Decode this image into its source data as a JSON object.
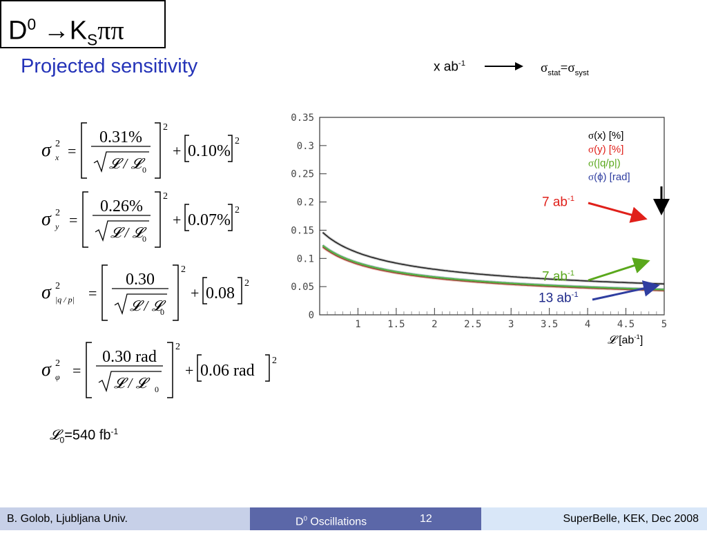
{
  "slide": {
    "title_main": "D",
    "title_sup": "0",
    "title_arrow": " →K",
    "title_sub": "S",
    "title_end": "ππ",
    "subtitle": "Projected sensitivity",
    "target_label": "x ab",
    "target_sup": "-1",
    "sigma_stat": "σ",
    "stat_sub": "stat",
    "equals": "=σ",
    "syst_sub": "syst"
  },
  "formulas": [
    {
      "sub": "x",
      "numerator": "0.31%",
      "syst": "0.10%"
    },
    {
      "sub": "y",
      "numerator": "0.26%",
      "syst": "0.07%"
    },
    {
      "sub": "|q / p|",
      "numerator": "0.30",
      "syst": "0.08"
    },
    {
      "sub": "φ",
      "numerator": "0.30 rad",
      "syst": "0.06 rad"
    }
  ],
  "formula_common": {
    "sigma": "σ",
    "power": "2",
    "eq": "=",
    "plus": "+",
    "denominator": "𝓛 / 𝓛",
    "denominator_sub": "0"
  },
  "luminosity_note": {
    "symbol": "𝓛",
    "sub": "0",
    "text": "=540 fb",
    "sup": "-1"
  },
  "chart_data": {
    "type": "line",
    "xlim": [
      0.5,
      5
    ],
    "ylim": [
      0,
      0.35
    ],
    "x_ticks": [
      1,
      1.5,
      2,
      2.5,
      3,
      3.5,
      4,
      4.5,
      5
    ],
    "y_ticks": [
      0,
      0.05,
      0.1,
      0.15,
      0.2,
      0.25,
      0.3,
      0.35
    ],
    "x_tick_labels": [
      "1",
      "1.5",
      "2",
      "2.5",
      "3",
      "3.5",
      "4",
      "4.5",
      "5"
    ],
    "y_tick_labels": [
      "0",
      "0.05",
      "0.1",
      "0.15",
      "0.2",
      "0.25",
      "0.3",
      "0.35"
    ],
    "xlabel_symbol": "𝓛",
    "xlabel_text": " [ab",
    "xlabel_sup": "-1",
    "xlabel_end": "]",
    "series": [
      {
        "name": "σ(x) [%]",
        "color": "#222222",
        "a": 0.1,
        "b": 0.01,
        "x": [
          0.54,
          5
        ]
      },
      {
        "name": "σ(y) [%]",
        "color": "#b23a2a",
        "a": 0.0845,
        "b": 0.0051,
        "x": [
          0.54,
          5
        ]
      },
      {
        "name": "σ(|q/p|)",
        "color": "#4fbf3a",
        "a": 0.0856,
        "b": 0.0064,
        "x": [
          0.54,
          5
        ]
      },
      {
        "name": "σ(φ) [rad]",
        "color": "#2d2f7e",
        "a": 0.0855,
        "b": 0.0067,
        "x": [
          0.54,
          5
        ]
      }
    ],
    "legend": [
      {
        "sym": "σ",
        "label": "(x) [%]",
        "color": "#000000"
      },
      {
        "sym": "σ",
        "label": "(y) [%]",
        "color": "#e0201a"
      },
      {
        "sym": "σ",
        "label": "(|q/p|)",
        "color": "#5aa81c"
      },
      {
        "sym": "σ",
        "label": "(ϕ) [rad]",
        "color": "#2f3ea0"
      }
    ],
    "annotations": [
      {
        "text": "7 ab",
        "sup": "-1",
        "color": "#e0201a"
      },
      {
        "text": "7 ab",
        "sup": "-1",
        "color": "#5aa81c"
      },
      {
        "text": "13 ab",
        "sup": "-1",
        "color": "#1f2a8a"
      }
    ],
    "legend_position": "top-right",
    "grid": false
  },
  "footer": {
    "left": "B. Golob, Ljubljana Univ.",
    "mid_d": "D",
    "mid_sup": "0",
    "mid_text": " Oscillations",
    "page": "12",
    "right": "SuperBelle, KEK, Dec 2008"
  }
}
